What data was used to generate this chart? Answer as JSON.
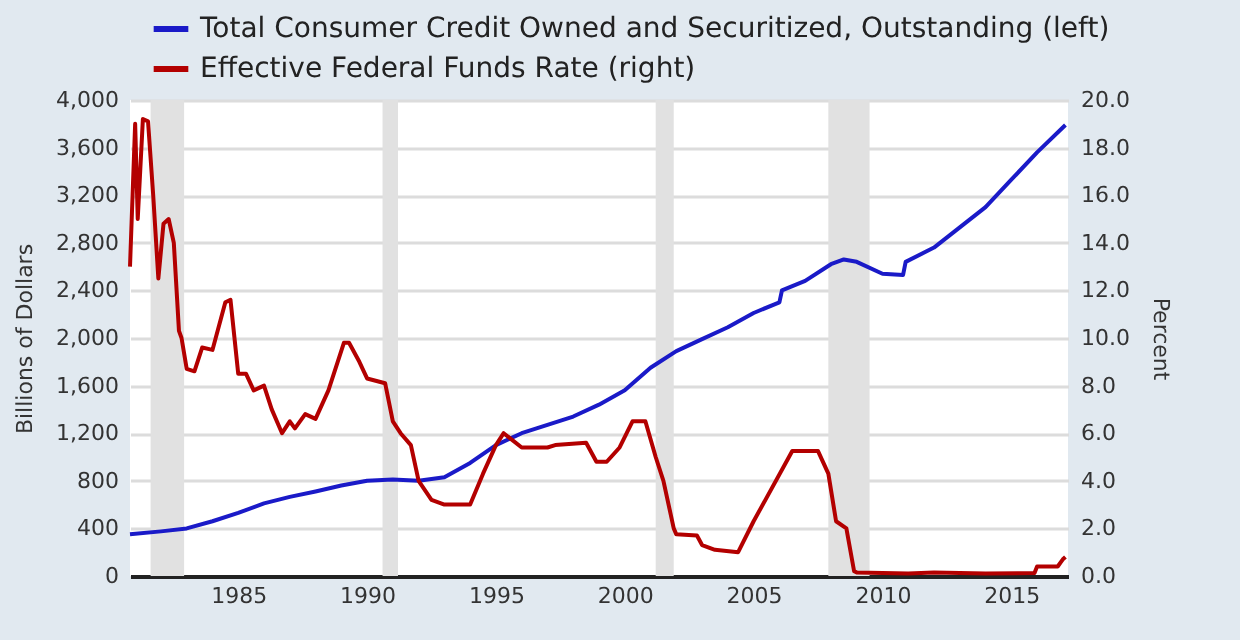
{
  "chart_data": {
    "type": "line",
    "ylabel": "Billions of Dollars",
    "y2label": "Percent",
    "xlim": [
      1980.8,
      2017.2
    ],
    "xticks": [
      1985,
      1990,
      1995,
      2000,
      2005,
      2010,
      2015
    ],
    "ylim": [
      0,
      4000
    ],
    "yticks": [
      {
        "value": 0,
        "label": "0"
      },
      {
        "value": 400,
        "label": "400"
      },
      {
        "value": 800,
        "label": "800"
      },
      {
        "value": 1200,
        "label": "1,200"
      },
      {
        "value": 1600,
        "label": "1,600"
      },
      {
        "value": 2000,
        "label": "2,000"
      },
      {
        "value": 2400,
        "label": "2,400"
      },
      {
        "value": 2800,
        "label": "2,800"
      },
      {
        "value": 3200,
        "label": "3,200"
      },
      {
        "value": 3600,
        "label": "3,600"
      },
      {
        "value": 4000,
        "label": "4,000"
      }
    ],
    "y2lim": [
      0,
      20
    ],
    "y2ticks": [
      {
        "value": 0,
        "label": "0.0"
      },
      {
        "value": 2,
        "label": "2.0"
      },
      {
        "value": 4,
        "label": "4.0"
      },
      {
        "value": 6,
        "label": "6.0"
      },
      {
        "value": 8,
        "label": "8.0"
      },
      {
        "value": 10,
        "label": "10.0"
      },
      {
        "value": 12,
        "label": "12.0"
      },
      {
        "value": 14,
        "label": "14.0"
      },
      {
        "value": 16,
        "label": "16.0"
      },
      {
        "value": 18,
        "label": "18.0"
      },
      {
        "value": 20,
        "label": "20.0"
      }
    ],
    "grid": "y",
    "legend": "top left",
    "bands": [
      {
        "axis": "x",
        "from": 1981.6,
        "to": 1982.9,
        "color": "#e1e1e1"
      },
      {
        "axis": "x",
        "from": 1990.6,
        "to": 1991.2,
        "color": "#e1e1e1"
      },
      {
        "axis": "x",
        "from": 2001.2,
        "to": 2001.9,
        "color": "#e1e1e1"
      },
      {
        "axis": "x",
        "from": 2007.9,
        "to": 2009.5,
        "color": "#e1e1e1"
      }
    ],
    "series": [
      {
        "name": "Total Consumer Credit Owned and Securitized, Outstanding (left)",
        "color": "#1a1ac8",
        "x": [
          1980.8,
          1982,
          1983,
          1984,
          1985,
          1986,
          1987,
          1988,
          1989,
          1990,
          1991,
          1992,
          1993,
          1994,
          1995,
          1996,
          1997,
          1998,
          1999,
          2000,
          2001,
          2002,
          2003,
          2004,
          2005,
          2006,
          2006.1,
          2007,
          2008,
          2008.5,
          2009,
          2010,
          2010.8,
          2010.9,
          2012,
          2013,
          2014,
          2015,
          2016,
          2017.1
        ],
        "values": [
          350,
          375,
          400,
          460,
          530,
          610,
          665,
          710,
          760,
          800,
          810,
          800,
          830,
          950,
          1100,
          1200,
          1270,
          1340,
          1440,
          1560,
          1750,
          1890,
          1990,
          2090,
          2210,
          2300,
          2400,
          2480,
          2620,
          2660,
          2640,
          2540,
          2530,
          2640,
          2760,
          2930,
          3100,
          3330,
          3560,
          3790
        ]
      },
      {
        "name": "Effective Federal Funds Rate (right)",
        "color": "#b30000",
        "axis": "y2",
        "x": [
          1980.8,
          1981.0,
          1981.1,
          1981.3,
          1981.5,
          1981.7,
          1981.9,
          1982.1,
          1982.3,
          1982.5,
          1982.7,
          1982.8,
          1983.0,
          1983.3,
          1983.6,
          1984.0,
          1984.5,
          1984.7,
          1985.0,
          1985.3,
          1985.6,
          1986.0,
          1986.3,
          1986.7,
          1987.0,
          1987.2,
          1987.6,
          1988.0,
          1988.5,
          1989.1,
          1989.3,
          1989.7,
          1990.0,
          1990.7,
          1991.0,
          1991.3,
          1991.7,
          1992.0,
          1992.5,
          1993.0,
          1994.0,
          1994.5,
          1995.0,
          1995.3,
          1996.0,
          1997.0,
          1997.3,
          1998.5,
          1998.9,
          1999.3,
          1999.8,
          2000.3,
          2000.8,
          2001.2,
          2001.5,
          2001.9,
          2002.0,
          2002.8,
          2003.0,
          2003.5,
          2004.4,
          2005.0,
          2006.5,
          2007.5,
          2007.9,
          2008.2,
          2008.6,
          2008.9,
          2009.0,
          2011.0,
          2012.0,
          2014.0,
          2015.9,
          2016.0,
          2016.8,
          2017.0,
          2017.1
        ],
        "values": [
          13,
          19.0,
          15,
          19.2,
          19.1,
          16,
          12.5,
          14.8,
          15,
          14,
          10.3,
          10,
          8.7,
          8.6,
          9.6,
          9.5,
          11.5,
          11.6,
          8.5,
          8.5,
          7.8,
          8,
          7,
          6.0,
          6.5,
          6.2,
          6.8,
          6.6,
          7.8,
          9.8,
          9.8,
          9,
          8.3,
          8.1,
          6.5,
          6.0,
          5.5,
          4.0,
          3.2,
          3.0,
          3.0,
          4.3,
          5.5,
          6.0,
          5.4,
          5.4,
          5.5,
          5.6,
          4.8,
          4.8,
          5.4,
          6.5,
          6.5,
          5.0,
          4.0,
          2.0,
          1.75,
          1.7,
          1.3,
          1.1,
          1.0,
          2.3,
          5.25,
          5.25,
          4.3,
          2.3,
          2.0,
          0.2,
          0.15,
          0.1,
          0.15,
          0.1,
          0.13,
          0.4,
          0.4,
          0.7,
          0.8
        ]
      }
    ]
  }
}
